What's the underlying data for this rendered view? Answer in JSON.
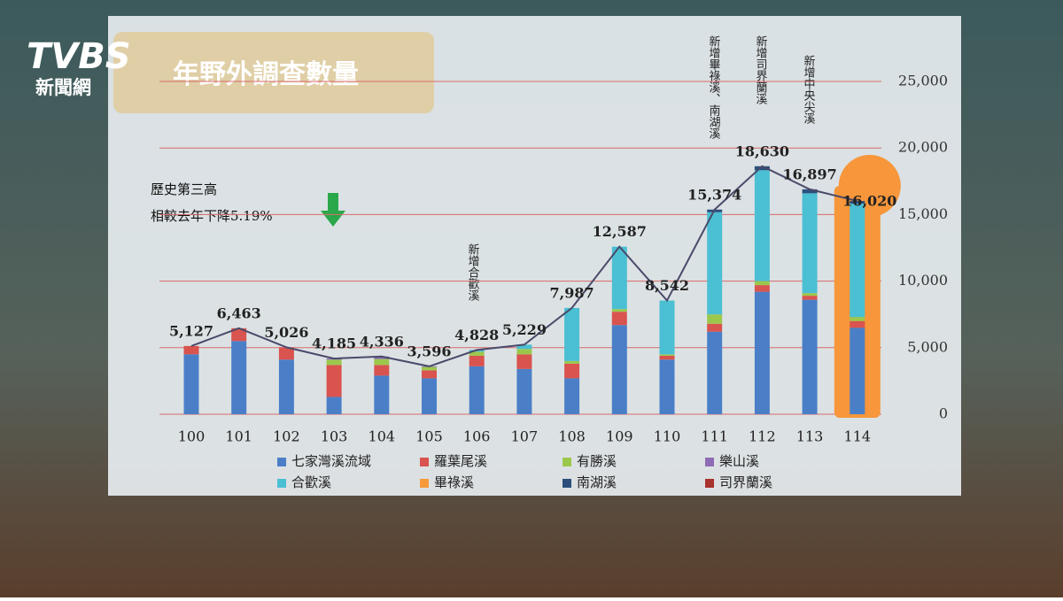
{
  "chart_data": {
    "type": "bar",
    "title": "年野外調查數量",
    "logo": {
      "brand": "TVBS",
      "sub": "新聞網"
    },
    "annotations": [
      "新增合歡溪",
      "新增畢祿溪、南湖溪",
      "新增司界蘭溪",
      "新增中央尖溪",
      "歷史第三高",
      "相較去年下降5.19%"
    ],
    "categories": [
      "100",
      "101",
      "102",
      "103",
      "104",
      "105",
      "106",
      "107",
      "108",
      "109",
      "110",
      "111",
      "112",
      "113",
      "114"
    ],
    "series": [
      {
        "name": "七家灣溪流域",
        "color": "#4a7fc8",
        "values": [
          4500,
          5500,
          4100,
          1300,
          2900,
          2700,
          3600,
          3400,
          2700,
          6700,
          4100,
          6200,
          9200,
          8600,
          6500
        ]
      },
      {
        "name": "羅葉尾溪",
        "color": "#d9534f",
        "values": [
          627,
          963,
          926,
          2400,
          800,
          600,
          800,
          1100,
          1100,
          1000,
          300,
          600,
          500,
          300,
          500
        ]
      },
      {
        "name": "有勝溪",
        "color": "#9bc84b",
        "values": [
          0,
          0,
          0,
          400,
          450,
          250,
          300,
          400,
          200,
          200,
          100,
          700,
          300,
          200,
          300
        ]
      },
      {
        "name": "樂山溪",
        "color": "#8e6bb5",
        "values": [
          0,
          0,
          0,
          85,
          186,
          46,
          0,
          0,
          0,
          0,
          0,
          0,
          0,
          0,
          0
        ]
      },
      {
        "name": "合歡溪",
        "color": "#4bbfd3",
        "values": [
          0,
          0,
          0,
          0,
          0,
          0,
          128,
          329,
          3987,
          4687,
          4042,
          7674,
          8330,
          7497,
          8520
        ]
      },
      {
        "name": "畢祿溪",
        "color": "#f59a3a",
        "values": [
          0,
          0,
          0,
          0,
          0,
          0,
          0,
          0,
          0,
          0,
          0,
          0,
          0,
          0,
          0
        ]
      },
      {
        "name": "南湖溪",
        "color": "#2c4f7c",
        "values": [
          0,
          0,
          0,
          0,
          0,
          0,
          0,
          0,
          0,
          0,
          0,
          200,
          300,
          300,
          200
        ]
      },
      {
        "name": "司界蘭溪",
        "color": "#a8322d",
        "values": [
          0,
          0,
          0,
          0,
          0,
          0,
          0,
          0,
          0,
          0,
          0,
          0,
          0,
          0,
          0
        ]
      }
    ],
    "totals": {
      "color": "#4a4a6a",
      "values": [
        5127,
        6463,
        5026,
        4185,
        4336,
        3596,
        4828,
        5229,
        7987,
        12587,
        8542,
        15374,
        18630,
        16897,
        16020
      ],
      "value_labels": [
        "5,127",
        "6,463",
        "5,026",
        "4,185",
        "4,336",
        "3,596",
        "4,828",
        "5,229",
        "7,987",
        "12,587",
        "8,542",
        "15,374",
        "18,630",
        "16,897",
        "16,020"
      ]
    },
    "highlight_color": "#f7963a",
    "ylim": [
      0,
      25000
    ],
    "yticks": [
      0,
      {
        "value": 5000,
        "label": "5,000"
      },
      {
        "value": 10000,
        "label": "10,000"
      },
      {
        "value": 15000,
        "label": "15,000"
      },
      {
        "value": 20000,
        "label": "20,000"
      },
      {
        "value": 25000,
        "label": "25,000"
      }
    ],
    "grid": true
  }
}
